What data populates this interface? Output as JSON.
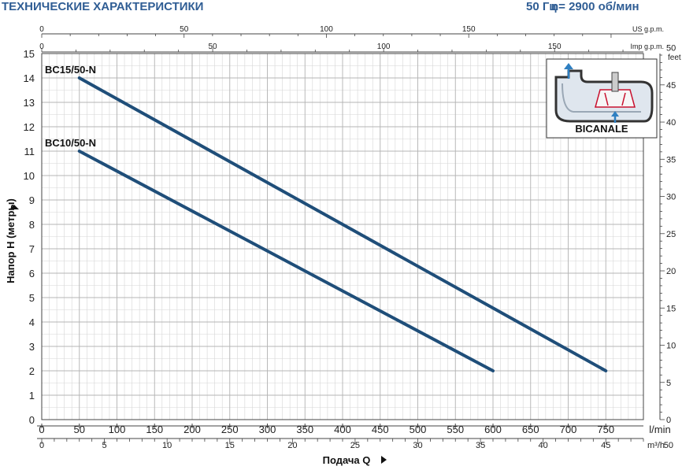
{
  "header": {
    "title": "ТЕХНИЧЕСКИЕ ХАРАКТЕРИСТИКИ",
    "frequency": "50 Гц",
    "speed": "n= 2900 об/мин"
  },
  "chart_data": {
    "type": "line",
    "title": "ТЕХНИЧЕСКИЕ ХАРАКТЕРИСТИКИ",
    "xlabel": "Подача Q",
    "ylabel": "Напор H (метры)",
    "xlim": [
      0,
      800
    ],
    "ylim": [
      0,
      15
    ],
    "x_unit": "l/min",
    "x_ticks": [
      0,
      50,
      100,
      150,
      200,
      250,
      300,
      350,
      400,
      450,
      500,
      550,
      600,
      650,
      700,
      750
    ],
    "y_ticks": [
      0,
      1,
      2,
      3,
      4,
      5,
      6,
      7,
      8,
      9,
      10,
      11,
      12,
      13,
      14,
      15
    ],
    "grid": true,
    "series": [
      {
        "name": "BC15/50-N",
        "x": [
          50,
          750
        ],
        "y": [
          14,
          2
        ],
        "color": "#1f4e79"
      },
      {
        "name": "BC10/50-N",
        "x": [
          50,
          600
        ],
        "y": [
          11,
          2
        ],
        "color": "#1f4e79"
      }
    ],
    "secondary_axes": {
      "top_us": {
        "label": "US g.p.m.",
        "ticks": [
          0,
          50,
          100,
          150
        ]
      },
      "top_imp": {
        "label": "Imp g.p.m.",
        "ticks": [
          0,
          50,
          100,
          150
        ]
      },
      "right_feet": {
        "label": "feet",
        "ticks": [
          0,
          5,
          10,
          15,
          20,
          25,
          30,
          35,
          40,
          45,
          50
        ]
      },
      "bottom_m3h": {
        "label": "m³/h",
        "ticks": [
          0,
          5,
          10,
          15,
          20,
          25,
          30,
          35,
          40,
          45,
          50
        ]
      }
    },
    "inset": {
      "label": "BICANALE"
    }
  }
}
